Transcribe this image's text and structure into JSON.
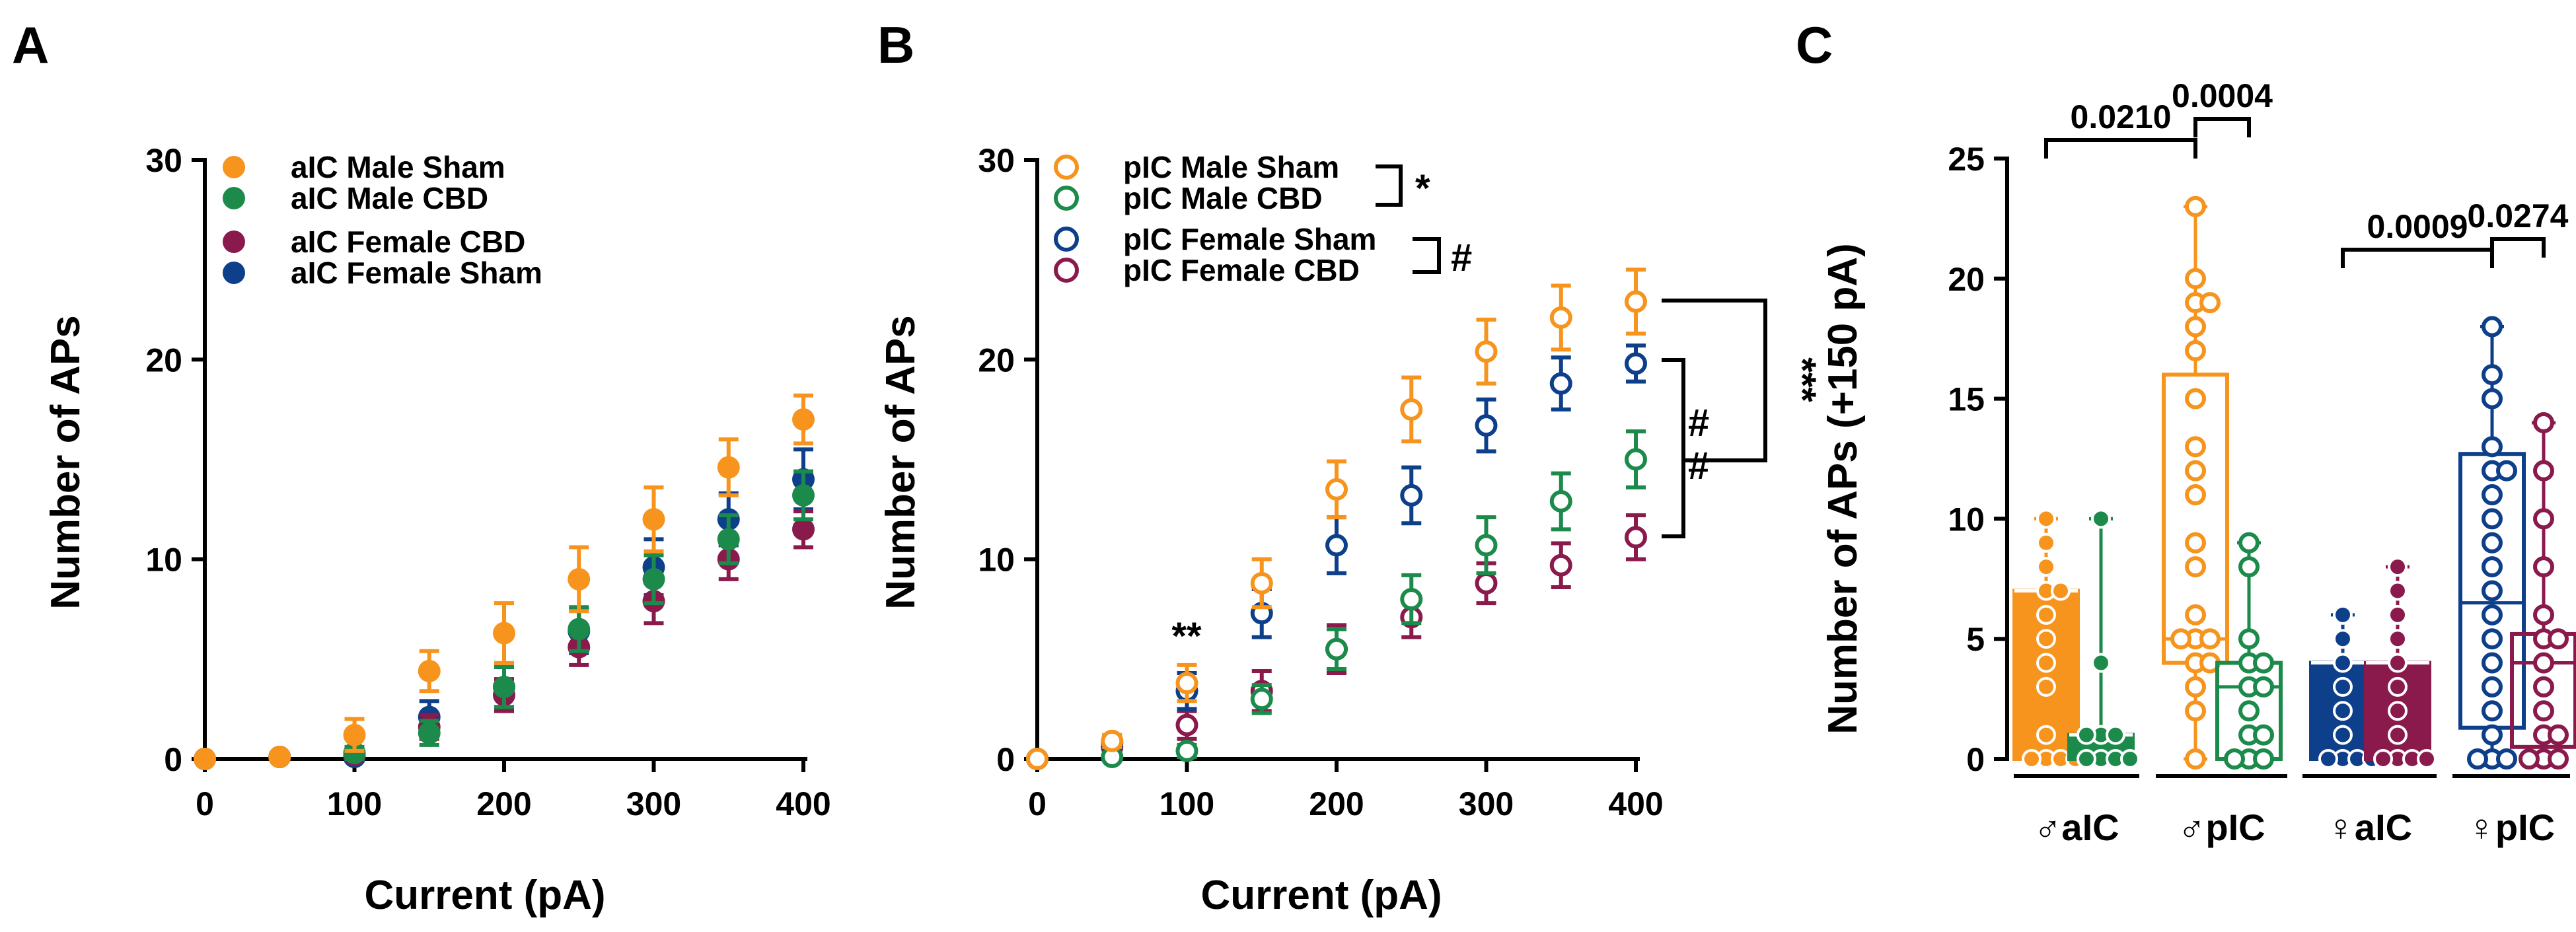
{
  "chart_data": [
    {
      "panel": "A",
      "type": "scatter",
      "xlabel": "Current (pA)",
      "ylabel": "Number of APs",
      "xlim": [
        0,
        400
      ],
      "ylim": [
        0,
        30
      ],
      "xticks": [
        0,
        100,
        200,
        300,
        400
      ],
      "yticks": [
        0,
        10,
        20,
        30
      ],
      "x": [
        0,
        50,
        100,
        150,
        200,
        250,
        300,
        350,
        400
      ],
      "legend_position": "top-left",
      "marker": "filled",
      "series": [
        {
          "name": "aIC  Male Sham",
          "color": "#f7941d",
          "values": [
            0,
            0.1,
            1.2,
            4.4,
            6.3,
            9.0,
            12.0,
            14.6,
            17.0
          ],
          "errors": [
            0,
            0.2,
            0.8,
            1.0,
            1.5,
            1.6,
            1.6,
            1.4,
            1.2
          ]
        },
        {
          "name": "aIC  Male CBD",
          "color": "#1b8a4a",
          "values": [
            0,
            0.1,
            0.3,
            1.3,
            3.6,
            6.5,
            9.0,
            11.0,
            13.2
          ],
          "errors": [
            0,
            0.1,
            0.3,
            0.6,
            1.0,
            1.1,
            1.2,
            1.2,
            1.2
          ]
        },
        {
          "name": "aIC Female CBD",
          "color": "#8a1a4c",
          "values": [
            0,
            0.1,
            0.2,
            1.6,
            3.2,
            5.6,
            7.9,
            10.0,
            11.5
          ],
          "errors": [
            0,
            0.1,
            0.2,
            0.6,
            0.8,
            0.9,
            1.1,
            1.0,
            0.9
          ]
        },
        {
          "name": "aIC Female Sham",
          "color": "#0d3f8a",
          "values": [
            0,
            0.1,
            0.1,
            2.1,
            3.6,
            6.4,
            9.6,
            12.0,
            14.0
          ],
          "errors": [
            0,
            0.1,
            0.2,
            0.8,
            1.0,
            1.1,
            1.4,
            1.3,
            1.5
          ]
        }
      ]
    },
    {
      "panel": "B",
      "type": "scatter",
      "xlabel": "Current (pA)",
      "ylabel": "Number of APs",
      "xlim": [
        0,
        400
      ],
      "ylim": [
        0,
        30
      ],
      "xticks": [
        0,
        100,
        200,
        300,
        400
      ],
      "yticks": [
        0,
        10,
        20,
        30
      ],
      "x": [
        0,
        50,
        100,
        150,
        200,
        250,
        300,
        350,
        400
      ],
      "legend_position": "top-left",
      "marker": "open",
      "series": [
        {
          "name": "pIC  Male Sham",
          "color": "#f7941d",
          "values": [
            0,
            0.9,
            3.8,
            8.8,
            13.5,
            17.5,
            20.4,
            22.1,
            22.9
          ],
          "errors": [
            0,
            0.3,
            0.9,
            1.2,
            1.4,
            1.6,
            1.6,
            1.6,
            1.6
          ]
        },
        {
          "name": "pIC  Male CBD",
          "color": "#1b8a4a",
          "values": [
            0,
            0.1,
            0.4,
            3.0,
            5.5,
            8.0,
            10.7,
            12.9,
            15.0
          ],
          "errors": [
            0,
            0.1,
            0.3,
            0.7,
            1.0,
            1.2,
            1.4,
            1.4,
            1.4
          ]
        },
        {
          "name": "pIC Female Sham",
          "color": "#0d3f8a",
          "values": [
            0,
            0.8,
            3.4,
            7.3,
            10.7,
            13.2,
            16.7,
            18.8,
            19.8
          ],
          "errors": [
            0,
            0.3,
            0.9,
            1.2,
            1.4,
            1.4,
            1.3,
            1.3,
            0.9
          ]
        },
        {
          "name": "pIC Female CBD",
          "color": "#8a1a4c",
          "values": [
            0,
            0.6,
            1.7,
            3.4,
            5.5,
            7.1,
            8.8,
            9.7,
            11.1
          ],
          "errors": [
            0,
            0.2,
            0.7,
            1.0,
            1.2,
            1.0,
            1.0,
            1.1,
            1.1
          ]
        }
      ],
      "annotations": {
        "legend_male_sig": "*",
        "legend_female_sig": "#",
        "at_100pA": "**",
        "sham_bracket": "***",
        "cbd_bracket_1": "#",
        "cbd_bracket_2": "#"
      }
    },
    {
      "panel": "C",
      "type": "bar",
      "ylabel": "Number of APs (+150 pA)",
      "ylim": [
        0,
        25
      ],
      "yticks": [
        0,
        5,
        10,
        15,
        20,
        25
      ],
      "groups": [
        {
          "label": "♂aIC",
          "symbol": "♂",
          "region": "aIC"
        },
        {
          "label": "♂pIC",
          "symbol": "♂",
          "region": "pIC"
        },
        {
          "label": "♀aIC",
          "symbol": "♀",
          "region": "aIC"
        },
        {
          "label": "♀pIC",
          "symbol": "♀",
          "region": "pIC"
        }
      ],
      "boxes": [
        {
          "group": 0,
          "name": "Male aIC Sham",
          "color": "#f7941d",
          "filled": true,
          "min": 0,
          "q1": 0,
          "median": 7,
          "q3": 7,
          "max": 10,
          "points": [
            0,
            0,
            0,
            0,
            1,
            3,
            4,
            5,
            6,
            7,
            7,
            8,
            9,
            10
          ]
        },
        {
          "group": 0,
          "name": "Male aIC CBD",
          "color": "#1b8a4a",
          "filled": true,
          "min": 0,
          "q1": 0,
          "median": 1,
          "q3": 1,
          "max": 10,
          "points": [
            0,
            0,
            0,
            0,
            1,
            1,
            1,
            4,
            10
          ]
        },
        {
          "group": 1,
          "name": "Male pIC Sham",
          "color": "#f7941d",
          "filled": false,
          "min": 0,
          "q1": 4,
          "median": 5,
          "q3": 16,
          "max": 23,
          "points": [
            0,
            2,
            3,
            4,
            4,
            5,
            5,
            5,
            6,
            8,
            9,
            11,
            12,
            13,
            15,
            17,
            18,
            19,
            19,
            20,
            23
          ]
        },
        {
          "group": 1,
          "name": "Male pIC CBD",
          "color": "#1b8a4a",
          "filled": false,
          "min": 0,
          "q1": 0,
          "median": 3,
          "q3": 4,
          "max": 9,
          "points": [
            0,
            0,
            0,
            1,
            1,
            2,
            3,
            3,
            4,
            4,
            5,
            8,
            9
          ]
        },
        {
          "group": 2,
          "name": "Female aIC Sham",
          "color": "#0d3f8a",
          "filled": true,
          "min": 0,
          "q1": 0,
          "median": 4,
          "q3": 4,
          "max": 6,
          "points": [
            0,
            0,
            0,
            0,
            1,
            2,
            3,
            4,
            5,
            6
          ]
        },
        {
          "group": 2,
          "name": "Female aIC CBD",
          "color": "#8a1a4c",
          "filled": true,
          "min": 0,
          "q1": 0,
          "median": 4,
          "q3": 4,
          "max": 8,
          "points": [
            0,
            0,
            0,
            0,
            1,
            2,
            3,
            4,
            5,
            6,
            7,
            8
          ]
        },
        {
          "group": 3,
          "name": "Female pIC Sham",
          "color": "#0d3f8a",
          "filled": false,
          "min": 0,
          "q1": 1.3,
          "median": 6.5,
          "q3": 12.7,
          "max": 18,
          "points": [
            0,
            0,
            0,
            1,
            2,
            3,
            4,
            5,
            6,
            7,
            8,
            9,
            10,
            11,
            12,
            12,
            13,
            15,
            16,
            18
          ]
        },
        {
          "group": 3,
          "name": "Female pIC CBD",
          "color": "#8a1a4c",
          "filled": false,
          "min": 0,
          "q1": 0.5,
          "median": 4,
          "q3": 5.2,
          "max": 14,
          "points": [
            0,
            0,
            0,
            1,
            1,
            2,
            3,
            4,
            5,
            5,
            6,
            8,
            10,
            12,
            14
          ]
        }
      ],
      "comparisons": [
        {
          "p": "0.0210",
          "from": 0,
          "to": 2
        },
        {
          "p": "0.0004",
          "from": 2,
          "to": 3
        },
        {
          "p": "0.0009",
          "from": 4,
          "to": 6
        },
        {
          "p": "0.0274",
          "from": 6,
          "to": 7
        }
      ]
    }
  ]
}
